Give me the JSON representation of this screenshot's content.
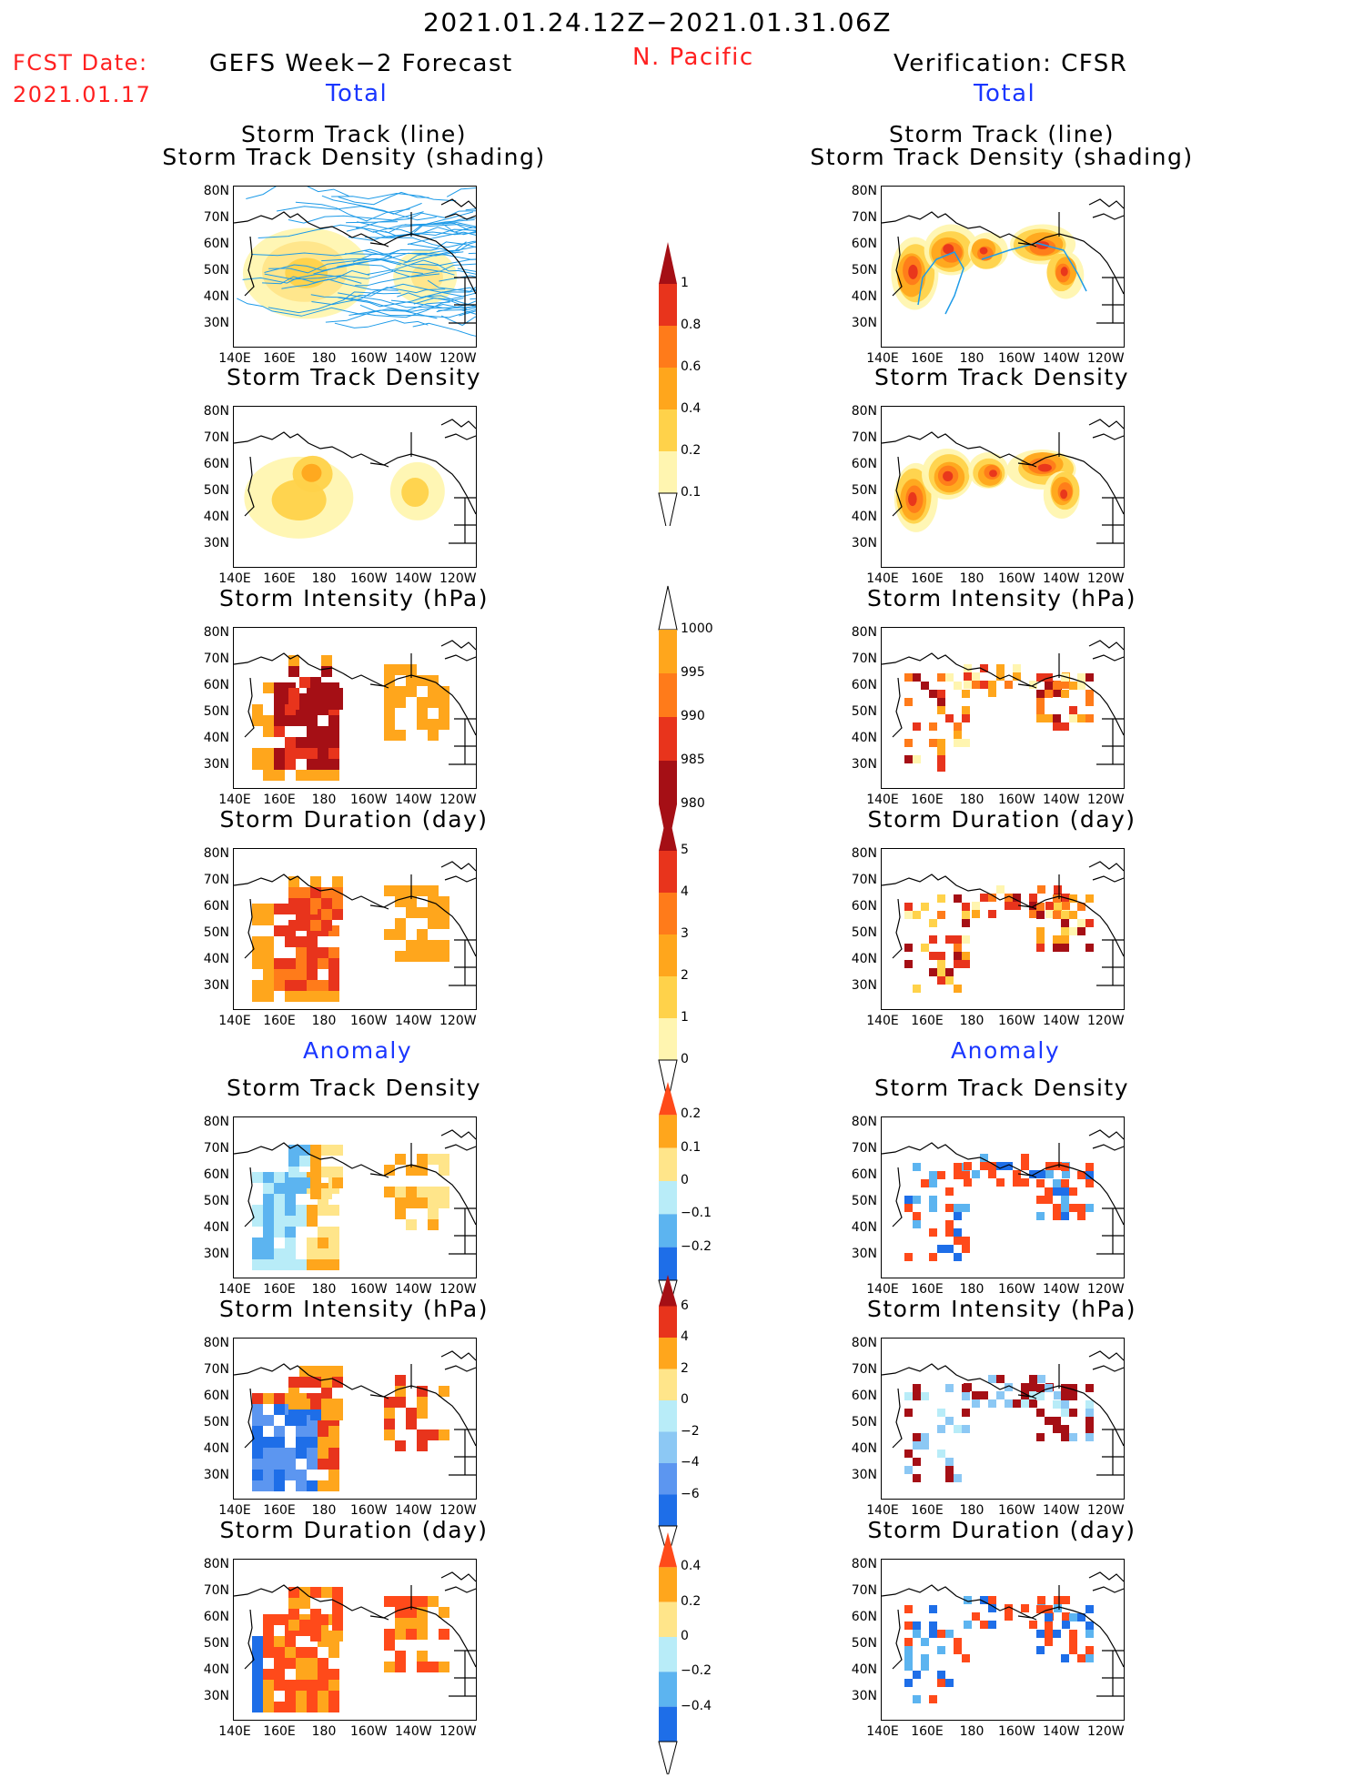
{
  "header": {
    "date_range": "2021.01.24.12Z−2021.01.31.06Z",
    "fcst_label": "FCST Date:",
    "fcst_date": "2021.01.17",
    "left_title": "GEFS Week−2 Forecast",
    "region": "N. Pacific",
    "right_title": "Verification: CFSR",
    "total_left": "Total",
    "total_right": "Total",
    "anomaly_left": "Anomaly",
    "anomaly_right": "Anomaly"
  },
  "panels": {
    "track_line": "Storm Track (line)",
    "track_density_shading": "Storm Track Density (shading)",
    "track_density": "Storm Track Density",
    "intensity": "Storm Intensity (hPa)",
    "duration": "Storm Duration (day)"
  },
  "axes": {
    "lat_labels": [
      "80N",
      "70N",
      "60N",
      "50N",
      "40N",
      "30N"
    ],
    "lon_labels": [
      "140E",
      "160E",
      "180",
      "160W",
      "140W",
      "120W"
    ]
  },
  "colorbars": {
    "density_total": {
      "labels": [
        "1",
        "0.8",
        "0.6",
        "0.4",
        "0.2",
        "0.1"
      ],
      "colors": [
        "#a50f15",
        "#e8341c",
        "#ff7b1a",
        "#ffa61c",
        "#ffd24a",
        "#fff5b0"
      ]
    },
    "intensity_total": {
      "labels": [
        "1000",
        "995",
        "990",
        "985",
        "980"
      ],
      "colors": [
        "#fff5b0",
        "#ffa61c",
        "#ff7b1a",
        "#e8341c",
        "#a50f15"
      ]
    },
    "duration_total": {
      "labels": [
        "5",
        "4",
        "3",
        "2",
        "1",
        "0"
      ],
      "colors": [
        "#a50f15",
        "#e8341c",
        "#ff7b1a",
        "#ffa61c",
        "#ffd24a",
        "#fff5b0"
      ]
    },
    "density_anom": {
      "labels": [
        "0.2",
        "0.1",
        "0",
        "−0.1",
        "−0.2"
      ],
      "colors": [
        "#ff4a1a",
        "#ffa61c",
        "#ffe58a",
        "#b8ecf8",
        "#5cb4f0",
        "#1e6ee8"
      ]
    },
    "intensity_anom": {
      "labels": [
        "6",
        "4",
        "2",
        "0",
        "−2",
        "−4",
        "−6"
      ],
      "colors": [
        "#a50f15",
        "#e8341c",
        "#ffa61c",
        "#ffe58a",
        "#b8ecf8",
        "#8cc8f4",
        "#5c96f0",
        "#1e6ee8"
      ]
    },
    "duration_anom": {
      "labels": [
        "0.4",
        "0.2",
        "0",
        "−0.2",
        "−0.4"
      ],
      "colors": [
        "#ff4a1a",
        "#ffa61c",
        "#ffe58a",
        "#b8ecf8",
        "#5cb4f0",
        "#1e6ee8"
      ]
    }
  }
}
